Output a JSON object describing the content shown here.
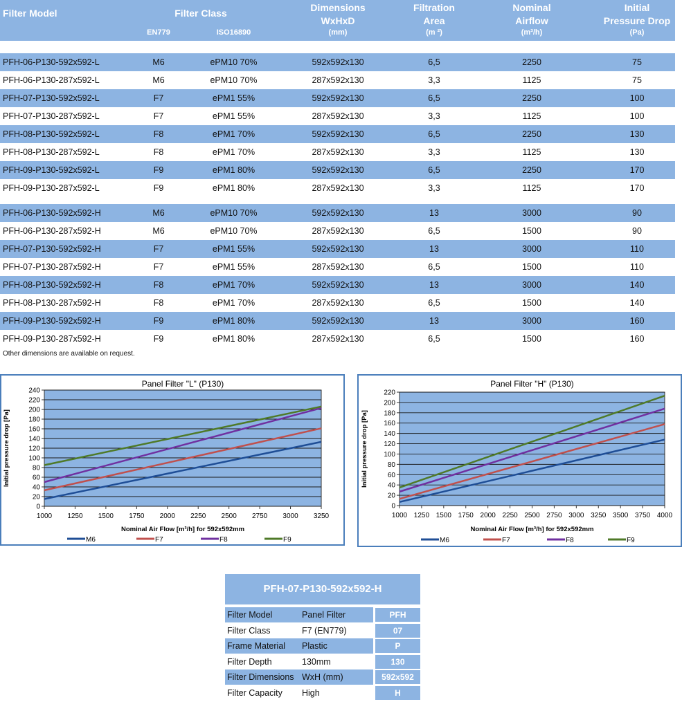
{
  "table": {
    "headers": {
      "model": "Filter Model",
      "filter_class": "Filter Class",
      "en779": "EN779",
      "iso16890": "ISO16890",
      "dim1": "Dimensions",
      "dim2": "WxHxD",
      "dim_unit": "(mm)",
      "area1": "Filtration",
      "area2": "Area",
      "area_unit": "(m ²)",
      "air1": "Nominal",
      "air2": "Airflow",
      "air_unit": "(m³/h)",
      "dp1": "Initial",
      "dp2": "Pressure Drop",
      "dp_unit": "(Pa)"
    },
    "rows": [
      [
        "PFH-06-P130-592x592-L",
        "M6",
        "ePM10 70%",
        "592x592x130",
        "6,5",
        "2250",
        "75"
      ],
      [
        "PFH-06-P130-287x592-L",
        "M6",
        "ePM10 70%",
        "287x592x130",
        "3,3",
        "1125",
        "75"
      ],
      [
        "PFH-07-P130-592x592-L",
        "F7",
        "ePM1 55%",
        "592x592x130",
        "6,5",
        "2250",
        "100"
      ],
      [
        "PFH-07-P130-287x592-L",
        "F7",
        "ePM1 55%",
        "287x592x130",
        "3,3",
        "1125",
        "100"
      ],
      [
        "PFH-08-P130-592x592-L",
        "F8",
        "ePM1 70%",
        "592x592x130",
        "6,5",
        "2250",
        "130"
      ],
      [
        "PFH-08-P130-287x592-L",
        "F8",
        "ePM1 70%",
        "287x592x130",
        "3,3",
        "1125",
        "130"
      ],
      [
        "PFH-09-P130-592x592-L",
        "F9",
        "ePM1 80%",
        "592x592x130",
        "6,5",
        "2250",
        "170"
      ],
      [
        "PFH-09-P130-287x592-L",
        "F9",
        "ePM1 80%",
        "287x592x130",
        "3,3",
        "1125",
        "170"
      ],
      [
        "PFH-06-P130-592x592-H",
        "M6",
        "ePM10 70%",
        "592x592x130",
        "13",
        "3000",
        "90"
      ],
      [
        "PFH-06-P130-287x592-H",
        "M6",
        "ePM10 70%",
        "287x592x130",
        "6,5",
        "1500",
        "90"
      ],
      [
        "PFH-07-P130-592x592-H",
        "F7",
        "ePM1 55%",
        "592x592x130",
        "13",
        "3000",
        "110"
      ],
      [
        "PFH-07-P130-287x592-H",
        "F7",
        "ePM1 55%",
        "287x592x130",
        "6,5",
        "1500",
        "110"
      ],
      [
        "PFH-08-P130-592x592-H",
        "F8",
        "ePM1 70%",
        "592x592x130",
        "13",
        "3000",
        "140"
      ],
      [
        "PFH-08-P130-287x592-H",
        "F8",
        "ePM1 70%",
        "287x592x130",
        "6,5",
        "1500",
        "140"
      ],
      [
        "PFH-09-P130-592x592-H",
        "F9",
        "ePM1 80%",
        "592x592x130",
        "13",
        "3000",
        "160"
      ],
      [
        "PFH-09-P130-287x592-H",
        "F9",
        "ePM1 80%",
        "287x592x130",
        "6,5",
        "1500",
        "160"
      ]
    ],
    "note": "Other dimensions are available on request."
  },
  "colors": {
    "header_blue": "#8db4e2",
    "plot_area": "#8db4e2",
    "frame": "#4a7ebb",
    "M6": "#1f4e96",
    "F7": "#c0504d",
    "F8": "#7030a0",
    "F9": "#4f7a28"
  },
  "chart_data": [
    {
      "type": "line",
      "title": "Panel Filter \"L\" (P130)",
      "xlabel": "Nominal Air Flow [m³/h] for 592x592mm",
      "ylabel": "Initial pressure drop [Pa]",
      "xlim": [
        1000,
        3250
      ],
      "ylim": [
        0,
        240
      ],
      "xticks": [
        1000,
        1250,
        1500,
        1750,
        2000,
        2250,
        2500,
        2750,
        3000,
        3250
      ],
      "yticks": [
        0,
        20,
        40,
        60,
        80,
        100,
        120,
        140,
        160,
        180,
        200,
        220,
        240
      ],
      "grid": "horizontal",
      "legend_position": "bottom",
      "x": [
        1000,
        3250
      ],
      "series": [
        {
          "name": "M6",
          "values": [
            15,
            133
          ]
        },
        {
          "name": "F7",
          "values": [
            33,
            161
          ]
        },
        {
          "name": "F8",
          "values": [
            50,
            203
          ]
        },
        {
          "name": "F9",
          "values": [
            85,
            206
          ]
        }
      ]
    },
    {
      "type": "line",
      "title": "Panel Filter \"H\" (P130)",
      "xlabel": "Nominal Air Flow [m³/h] for 592x592mm",
      "ylabel": "Initial pressure drop [Pa]",
      "xlim": [
        1000,
        4000
      ],
      "ylim": [
        0,
        220
      ],
      "xticks": [
        1000,
        1250,
        1500,
        1750,
        2000,
        2250,
        2500,
        2750,
        3000,
        3250,
        3500,
        3750,
        4000
      ],
      "yticks": [
        0,
        20,
        40,
        60,
        80,
        100,
        120,
        140,
        160,
        180,
        200,
        220
      ],
      "grid": "horizontal",
      "legend_position": "bottom",
      "x": [
        1000,
        4000
      ],
      "series": [
        {
          "name": "M6",
          "values": [
            7,
            128
          ]
        },
        {
          "name": "F7",
          "values": [
            13,
            158
          ]
        },
        {
          "name": "F8",
          "values": [
            27,
            188
          ]
        },
        {
          "name": "F9",
          "values": [
            35,
            213
          ]
        }
      ]
    }
  ],
  "code": {
    "title": "PFH-07-P130-592x592-H",
    "rows": [
      {
        "label": "Filter Model",
        "value": "Panel Filter",
        "code": "PFH"
      },
      {
        "label": "Filter Class",
        "value": "F7 (EN779)",
        "code": "07"
      },
      {
        "label": "Frame Material",
        "value": "Plastic",
        "code": "P"
      },
      {
        "label": "Filter Depth",
        "value": "130mm",
        "code": "130"
      },
      {
        "label": "Filter Dimensions",
        "value": "WxH (mm)",
        "code": "592x592"
      },
      {
        "label": "Filter Capacity",
        "value": "High",
        "code": "H"
      }
    ]
  }
}
